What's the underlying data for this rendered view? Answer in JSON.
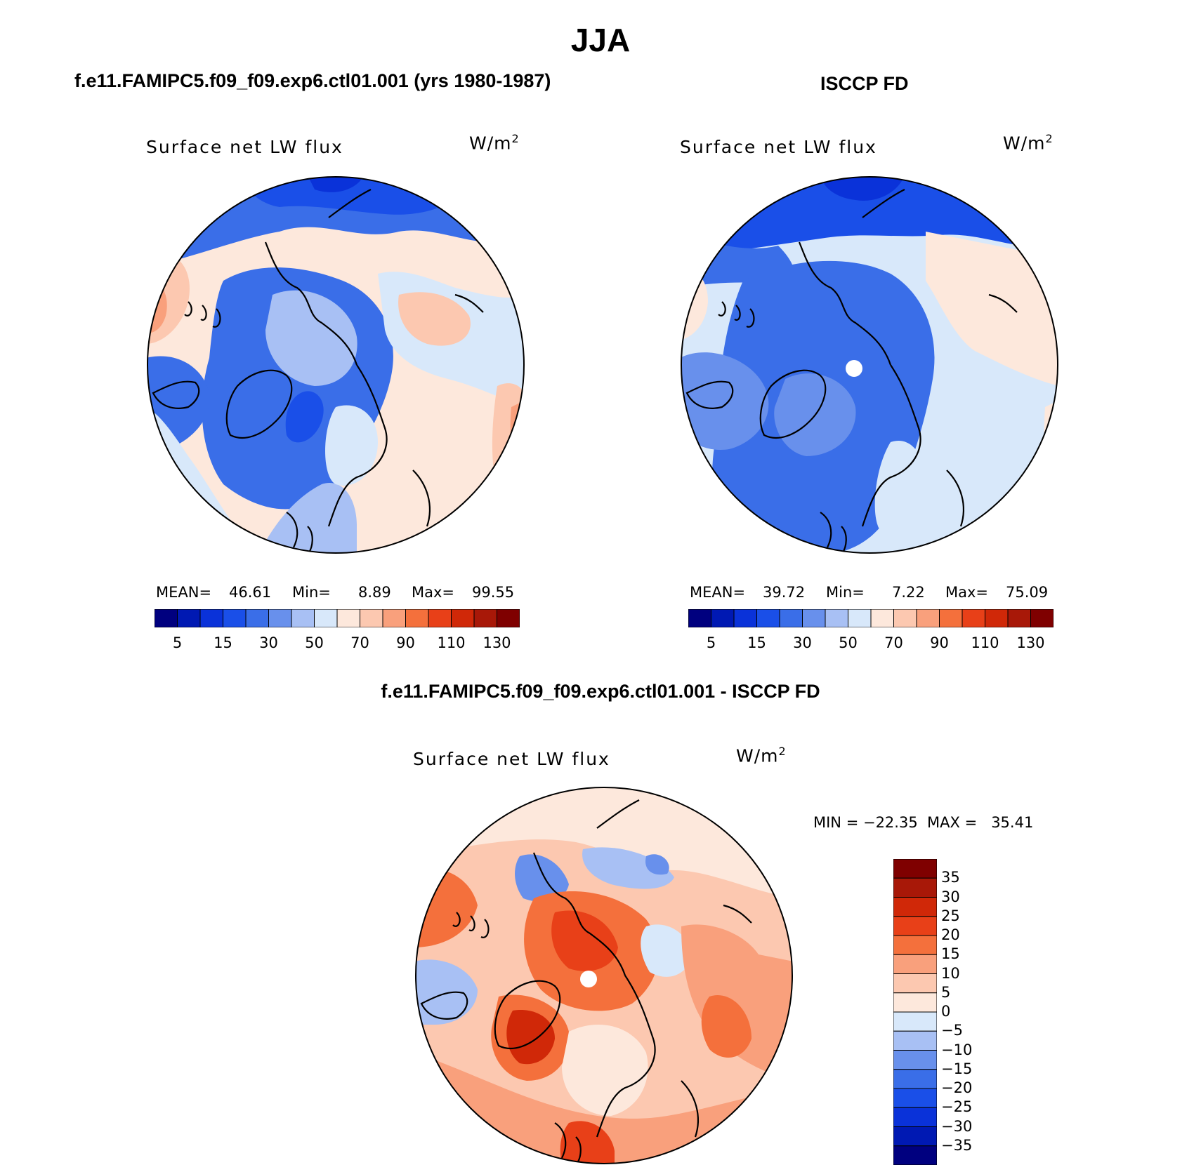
{
  "main_title": "JJA",
  "colors": {
    "continuous_scale": [
      "#00007f",
      "#0019b3",
      "#0a32d9",
      "#1a4fe8",
      "#3a6ee8",
      "#6890ec",
      "#a8c0f4",
      "#d8e8fa",
      "#fde8dc",
      "#fcc8b0",
      "#f9a07c",
      "#f4703c",
      "#e84018",
      "#d02808",
      "#a81808",
      "#7f0000"
    ],
    "diff_scale": [
      "#00007f",
      "#0019b3",
      "#0a32d9",
      "#1a4fe8",
      "#3a6ee8",
      "#6890ec",
      "#a8c0f4",
      "#d8e8fa",
      "#fde8dc",
      "#fcc8b0",
      "#f9a07c",
      "#f4703c",
      "#e84018",
      "#d02808",
      "#a81808",
      "#7f0000"
    ]
  },
  "panels": {
    "model": {
      "case_title": "f.e11.FAMIPC5.f09_f09.exp6.ctl01.001 (yrs 1980-1987)",
      "plot_title": "Surface net LW flux",
      "units_base": "W/m",
      "units_exp": "2",
      "mean_label": "MEAN=",
      "mean_value": "46.61",
      "min_label": "Min=",
      "min_value": "8.89",
      "max_label": "Max=",
      "max_value": "99.55",
      "colorbar_labels": [
        "5",
        "15",
        "30",
        "50",
        "70",
        "90",
        "110",
        "130"
      ]
    },
    "obs": {
      "case_title": "ISCCP FD",
      "plot_title": "Surface net LW flux",
      "units_base": "W/m",
      "units_exp": "2",
      "mean_label": "MEAN=",
      "mean_value": "39.72",
      "min_label": "Min=",
      "min_value": "7.22",
      "max_label": "Max=",
      "max_value": "75.09",
      "colorbar_labels": [
        "5",
        "15",
        "30",
        "50",
        "70",
        "90",
        "110",
        "130"
      ]
    },
    "diff": {
      "case_title": "f.e11.FAMIPC5.f09_f09.exp6.ctl01.001 - ISCCP FD",
      "plot_title": "Surface net LW flux",
      "units_base": "W/m",
      "units_exp": "2",
      "minmax_text": "MIN = −22.35  MAX =   35.41",
      "colorbar_labels": [
        "35",
        "30",
        "25",
        "20",
        "15",
        "10",
        "5",
        "0",
        "−5",
        "−10",
        "−15",
        "−20",
        "−25",
        "−30",
        "−35"
      ]
    }
  }
}
